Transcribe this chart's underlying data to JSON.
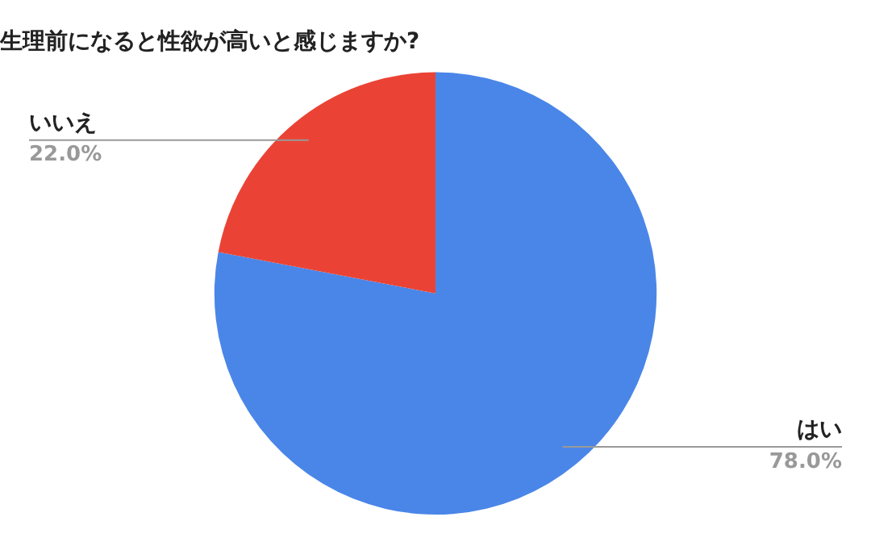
{
  "chart_data": {
    "type": "pie",
    "title": "生理前になると性欲が高いと感じますか?",
    "categories": [
      "はい",
      "いいえ"
    ],
    "values": [
      78,
      22
    ],
    "colors": [
      "#4a86e8",
      "#ea4335"
    ],
    "value_labels": [
      "78.0%",
      "22.0%"
    ],
    "legend": false
  }
}
